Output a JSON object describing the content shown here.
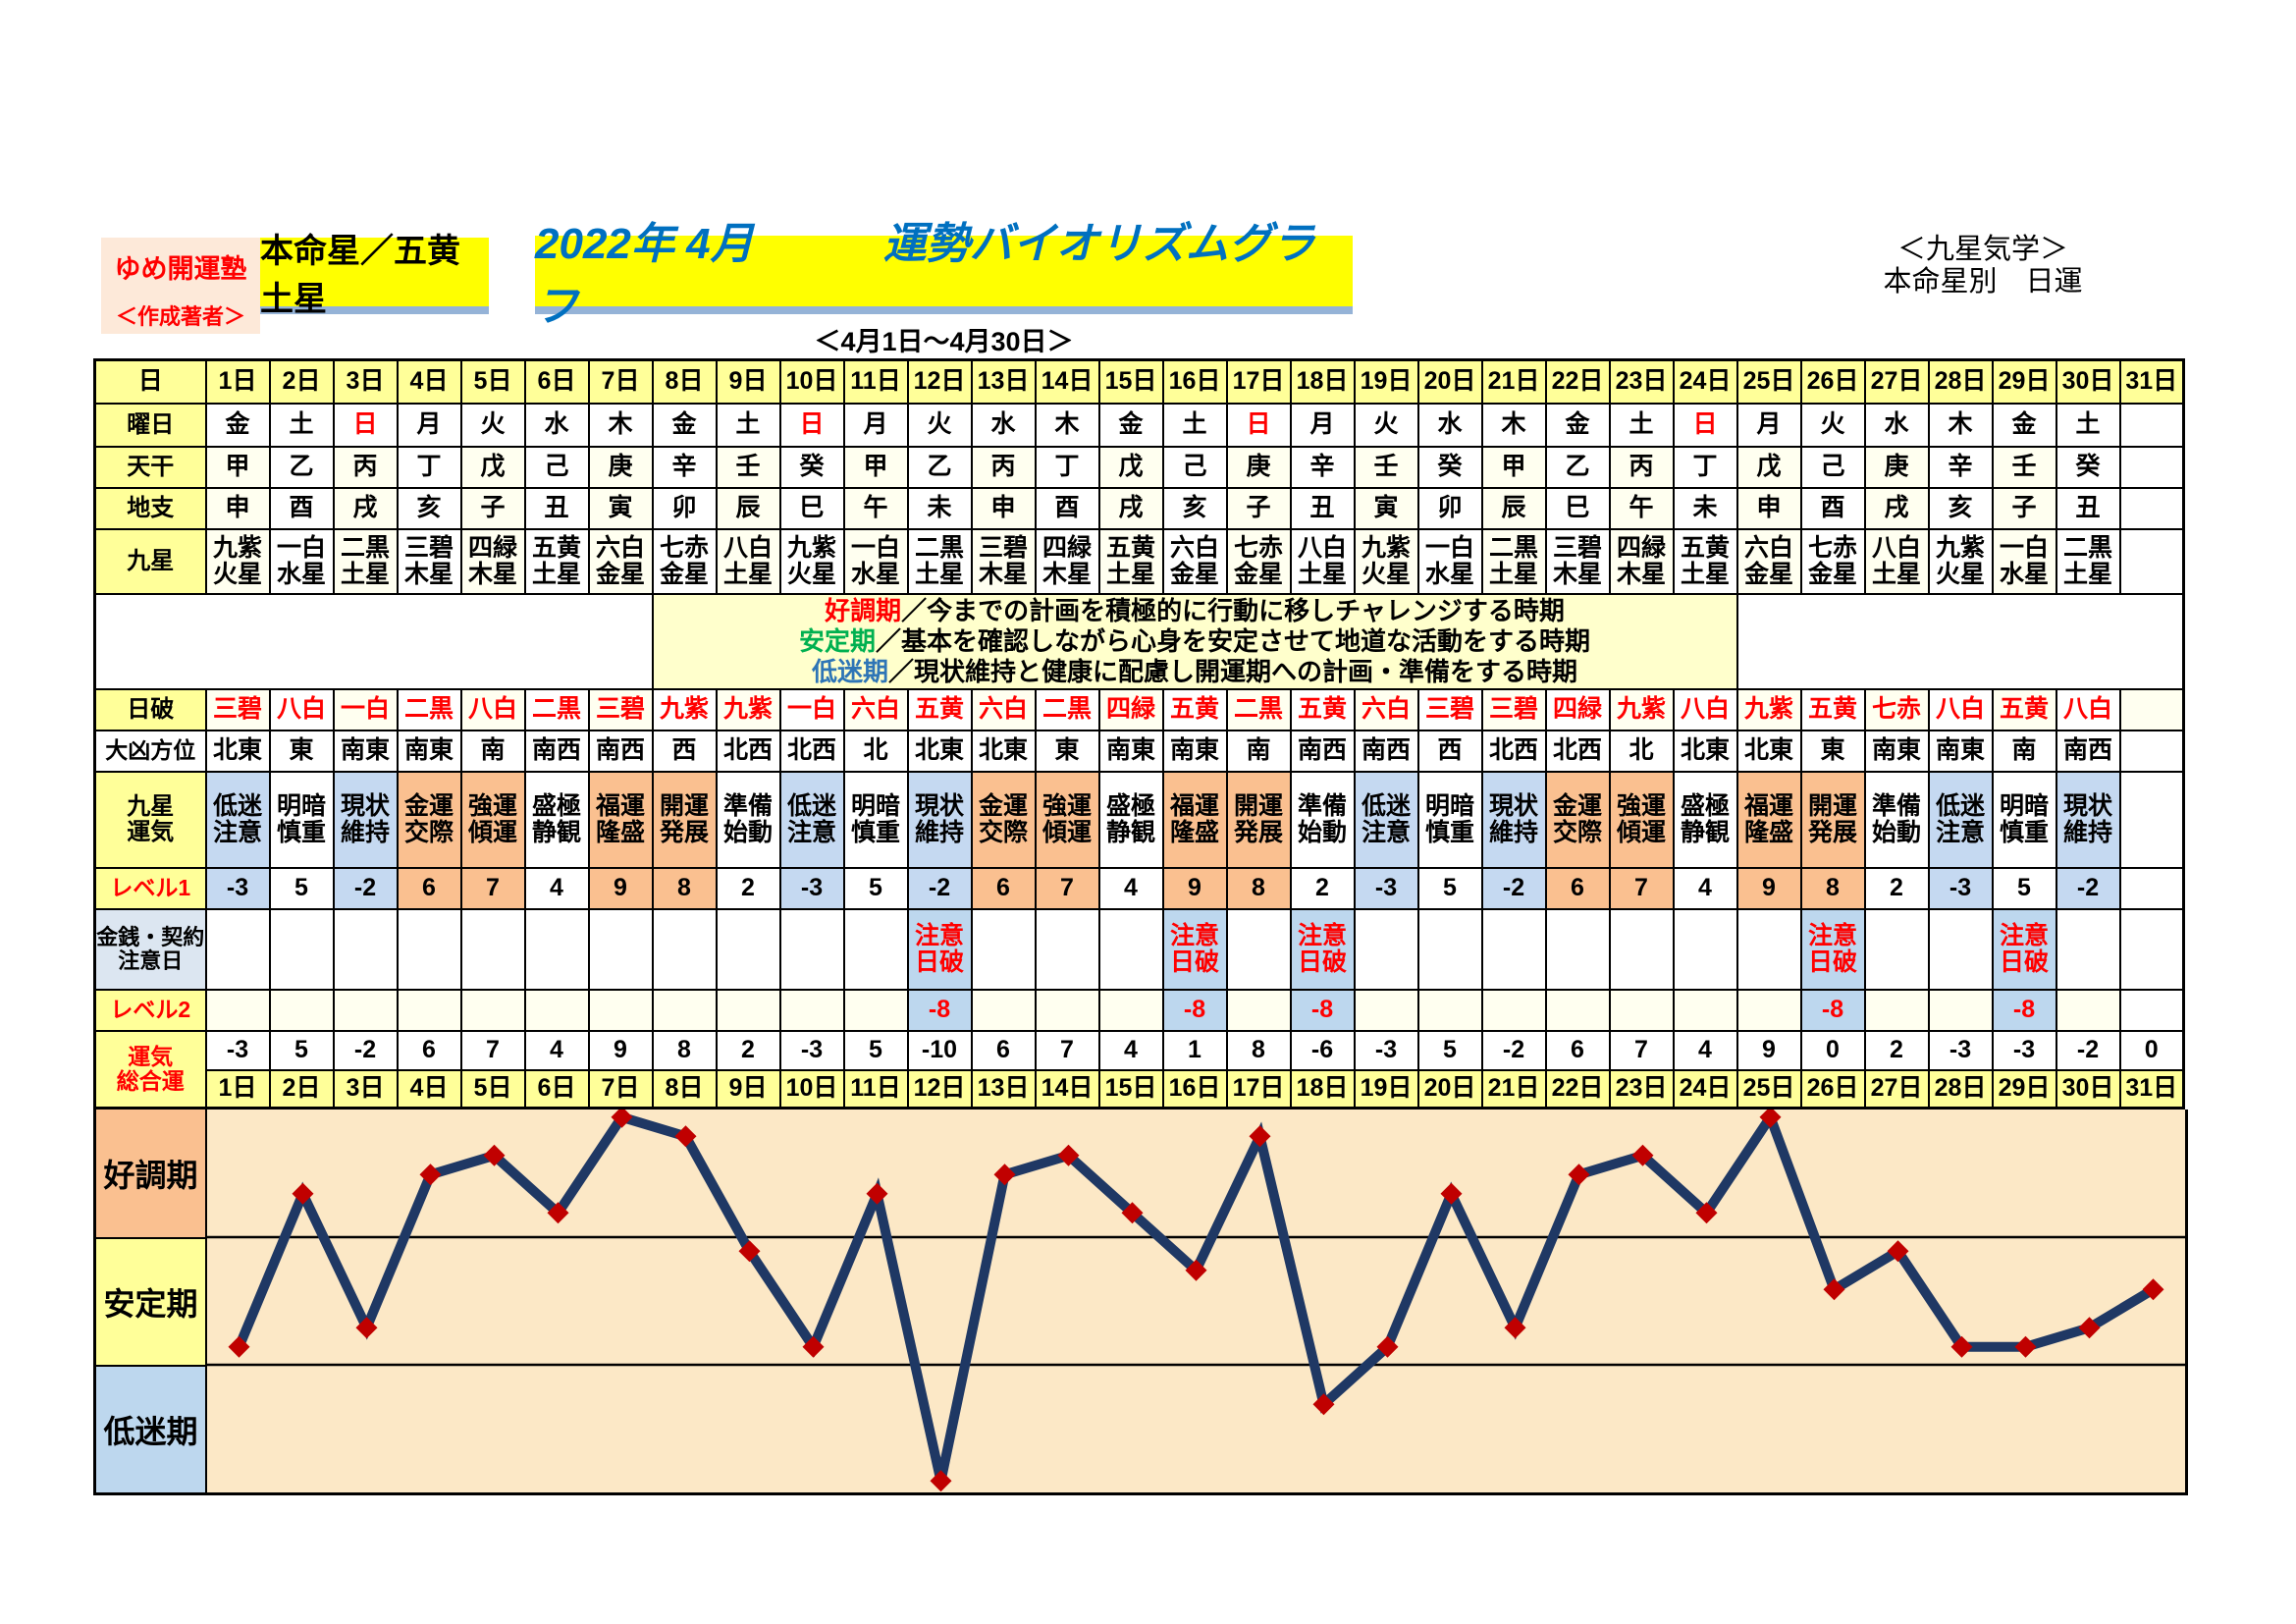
{
  "header": {
    "brand_line1": "ゆめ開運塾",
    "brand_line2": "＜作成著者＞",
    "honmeisei_label": "本命星／五黄土星",
    "title": "2022年 4月　　　運勢バイオリズムグラフ",
    "subtitle": "＜4月1日～4月30日＞",
    "right_line1": "＜九星気学＞",
    "right_line2": "本命星別　日運"
  },
  "legend": [
    {
      "term": "好調期",
      "color": "#FF0000",
      "desc": "／今までの計画を積極的に行動に移しチャレンジする時期"
    },
    {
      "term": "安定期",
      "color": "#00B050",
      "desc": "／基本を確認しながら心身を安定させて地道な活動をする時期"
    },
    {
      "term": "低迷期",
      "color": "#2E75B6",
      "desc": "／現状維持と健康に配慮し開運期への計画・準備をする時期"
    }
  ],
  "colors": {
    "yellow_header": "#FFFF99",
    "bright_yellow": "#FFFF00",
    "title_blue": "#0070C0",
    "red": "#FF0000",
    "ivory": "#FFFFF0",
    "white": "#FFFFFF",
    "legend_bg": "#FFFFCC",
    "blue_cell": "#C5D9F1",
    "blue_note": "#BDD7EE",
    "orange_cell": "#FAC090",
    "kinsen_label_bg": "#DCE6F1",
    "chart_bg": "#FCE8C6",
    "band_good": "#FAC090",
    "band_stable": "#FFFF99",
    "band_low": "#BDD7EE",
    "line": "#1F3864",
    "marker": "#C00000",
    "underline_blue": "#95B3D7",
    "brand_bg": "#FDE9D9"
  },
  "table": {
    "row_labels": {
      "day": "日",
      "weekday": "曜日",
      "tenkan": "天干",
      "chishi": "地支",
      "kyusei": "九星",
      "nichiha": "日破",
      "daikyo": "大凶方位",
      "unki": "九星\n運気",
      "level1": "レベル1",
      "kinsen": "金銭・契約\n注意日",
      "level2": "レベル2",
      "sogo": "運気\n総合運"
    },
    "days": [
      "1日",
      "2日",
      "3日",
      "4日",
      "5日",
      "6日",
      "7日",
      "8日",
      "9日",
      "10日",
      "11日",
      "12日",
      "13日",
      "14日",
      "15日",
      "16日",
      "17日",
      "18日",
      "19日",
      "20日",
      "21日",
      "22日",
      "23日",
      "24日",
      "25日",
      "26日",
      "27日",
      "28日",
      "29日",
      "30日",
      "31日"
    ],
    "weekdays": [
      "金",
      "土",
      "日",
      "月",
      "火",
      "水",
      "木",
      "金",
      "土",
      "日",
      "月",
      "火",
      "水",
      "木",
      "金",
      "土",
      "日",
      "月",
      "火",
      "水",
      "木",
      "金",
      "土",
      "日",
      "月",
      "火",
      "水",
      "木",
      "金",
      "土",
      ""
    ],
    "sunday_label": "日",
    "tenkan": [
      "甲",
      "乙",
      "丙",
      "丁",
      "戊",
      "己",
      "庚",
      "辛",
      "壬",
      "癸",
      "甲",
      "乙",
      "丙",
      "丁",
      "戊",
      "己",
      "庚",
      "辛",
      "壬",
      "癸",
      "甲",
      "乙",
      "丙",
      "丁",
      "戊",
      "己",
      "庚",
      "辛",
      "壬",
      "癸",
      ""
    ],
    "chishi": [
      "申",
      "酉",
      "戌",
      "亥",
      "子",
      "丑",
      "寅",
      "卯",
      "辰",
      "巳",
      "午",
      "未",
      "申",
      "酉",
      "戌",
      "亥",
      "子",
      "丑",
      "寅",
      "卯",
      "辰",
      "巳",
      "午",
      "未",
      "申",
      "酉",
      "戌",
      "亥",
      "子",
      "丑",
      ""
    ],
    "kyusei": [
      "九紫\n火星",
      "一白\n水星",
      "二黒\n土星",
      "三碧\n木星",
      "四緑\n木星",
      "五黄\n土星",
      "六白\n金星",
      "七赤\n金星",
      "八白\n土星",
      "九紫\n火星",
      "一白\n水星",
      "二黒\n土星",
      "三碧\n木星",
      "四緑\n木星",
      "五黄\n土星",
      "六白\n金星",
      "七赤\n金星",
      "八白\n土星",
      "九紫\n火星",
      "一白\n水星",
      "二黒\n土星",
      "三碧\n木星",
      "四緑\n木星",
      "五黄\n土星",
      "六白\n金星",
      "七赤\n金星",
      "八白\n土星",
      "九紫\n火星",
      "一白\n水星",
      "二黒\n土星",
      ""
    ],
    "nichiha": [
      "三碧",
      "八白",
      "一白",
      "二黒",
      "八白",
      "二黒",
      "三碧",
      "九紫",
      "九紫",
      "一白",
      "六白",
      "五黄",
      "六白",
      "二黒",
      "四緑",
      "五黄",
      "二黒",
      "五黄",
      "六白",
      "三碧",
      "三碧",
      "四緑",
      "九紫",
      "八白",
      "九紫",
      "五黄",
      "七赤",
      "八白",
      "五黄",
      "八白",
      ""
    ],
    "daikyo": [
      "北東",
      "東",
      "南東",
      "南東",
      "南",
      "南西",
      "南西",
      "西",
      "北西",
      "北西",
      "北",
      "北東",
      "北東",
      "東",
      "南東",
      "南東",
      "南",
      "南西",
      "南西",
      "西",
      "北西",
      "北西",
      "北",
      "北東",
      "北東",
      "東",
      "南東",
      "南東",
      "南",
      "南西",
      ""
    ],
    "unki": [
      "低迷\n注意",
      "明暗\n慎重",
      "現状\n維持",
      "金運\n交際",
      "強運\n傾運",
      "盛極\n静観",
      "福運\n隆盛",
      "開運\n発展",
      "準備\n始動",
      "低迷\n注意",
      "明暗\n慎重",
      "現状\n維持",
      "金運\n交際",
      "強運\n傾運",
      "盛極\n静観",
      "福運\n隆盛",
      "開運\n発展",
      "準備\n始動",
      "低迷\n注意",
      "明暗\n慎重",
      "現状\n維持",
      "金運\n交際",
      "強運\n傾運",
      "盛極\n静観",
      "福運\n隆盛",
      "開運\n発展",
      "準備\n始動",
      "低迷\n注意",
      "明暗\n慎重",
      "現状\n維持",
      ""
    ],
    "unki_cycle_kinds": [
      "low",
      "neutral",
      "low",
      "high",
      "high",
      "neutral",
      "high",
      "high",
      "neutral"
    ],
    "level1": [
      -3,
      5,
      -2,
      6,
      7,
      4,
      9,
      8,
      2,
      -3,
      5,
      -2,
      6,
      7,
      4,
      9,
      8,
      2,
      -3,
      5,
      -2,
      6,
      7,
      4,
      9,
      8,
      2,
      -3,
      5,
      -2,
      ""
    ],
    "note_days": [
      12,
      16,
      18,
      26,
      29
    ],
    "note_text": "注意\n日破",
    "level2_value": "-8",
    "sogo": [
      -3,
      5,
      -2,
      6,
      7,
      4,
      9,
      8,
      2,
      -3,
      5,
      -10,
      6,
      7,
      4,
      1,
      8,
      -6,
      -3,
      5,
      -2,
      6,
      7,
      4,
      9,
      0,
      2,
      -3,
      -3,
      -2,
      0
    ]
  },
  "chart_data": {
    "type": "line",
    "title": "2022年 4月 運勢バイオリズムグラフ",
    "xlabel": "日",
    "ylabel": "運気総合運",
    "x_labels": [
      "1日",
      "2日",
      "3日",
      "4日",
      "5日",
      "6日",
      "7日",
      "8日",
      "9日",
      "10日",
      "11日",
      "12日",
      "13日",
      "14日",
      "15日",
      "16日",
      "17日",
      "18日",
      "19日",
      "20日",
      "21日",
      "22日",
      "23日",
      "24日",
      "25日",
      "26日",
      "27日",
      "28日",
      "29日",
      "30日",
      "31日"
    ],
    "values": [
      -3,
      5,
      -2,
      6,
      7,
      4,
      9,
      8,
      2,
      -3,
      5,
      -10,
      6,
      7,
      4,
      1,
      8,
      -6,
      -3,
      5,
      -2,
      6,
      7,
      4,
      9,
      0,
      2,
      -3,
      -3,
      -2,
      0
    ],
    "bands": [
      {
        "label": "好調期",
        "color": "#FAC090"
      },
      {
        "label": "安定期",
        "color": "#FFFF99"
      },
      {
        "label": "低迷期",
        "color": "#BDD7EE"
      }
    ],
    "ylim": [
      -10.6,
      9.4
    ],
    "band_boundaries": [
      2.73,
      -3.93
    ],
    "plot_bg": "#FCE8C6",
    "line_color": "#1F3864",
    "marker": "diamond",
    "marker_color": "#C00000",
    "grid": false,
    "legend_position": "left"
  }
}
